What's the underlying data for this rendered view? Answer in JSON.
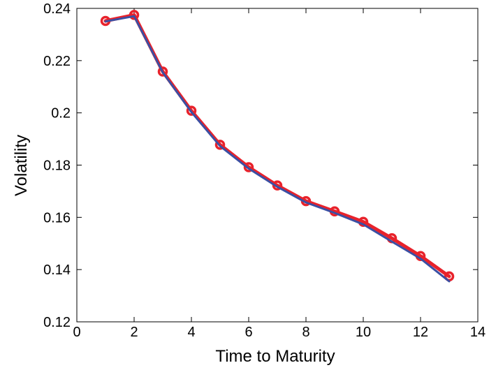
{
  "chart_data": {
    "type": "line",
    "title": "",
    "xlabel": "Time to Maturity",
    "ylabel": "Volatility",
    "xlim": [
      0,
      14
    ],
    "ylim": [
      0.12,
      0.24
    ],
    "xticks": [
      0,
      2,
      4,
      6,
      8,
      10,
      12,
      14
    ],
    "yticks": [
      0.12,
      0.14,
      0.16,
      0.18,
      0.2,
      0.22,
      0.24
    ],
    "xtick_labels": [
      "0",
      "2",
      "4",
      "6",
      "8",
      "10",
      "12",
      "14"
    ],
    "ytick_labels": [
      "0.12",
      "0.14",
      "0.16",
      "0.18",
      "0.2",
      "0.22",
      "0.24"
    ],
    "grid": false,
    "legend": "none",
    "series": [
      {
        "color": "#e8222b",
        "marker": "circle",
        "x": [
          1,
          2,
          3,
          4,
          5,
          6,
          7,
          8,
          9,
          10,
          11,
          12,
          13
        ],
        "y": [
          0.2352,
          0.2375,
          0.2158,
          0.2008,
          0.1878,
          0.1792,
          0.1722,
          0.1662,
          0.1623,
          0.1583,
          0.152,
          0.1452,
          0.1374
        ]
      },
      {
        "color": "#3b4fa3",
        "marker": "none",
        "x": [
          1,
          2,
          3,
          4,
          5,
          6,
          7,
          8,
          9,
          10,
          11,
          12,
          13
        ],
        "y": [
          0.235,
          0.237,
          0.2155,
          0.2003,
          0.1873,
          0.1787,
          0.1717,
          0.1657,
          0.1617,
          0.1573,
          0.1507,
          0.1442,
          0.1355
        ]
      }
    ]
  }
}
